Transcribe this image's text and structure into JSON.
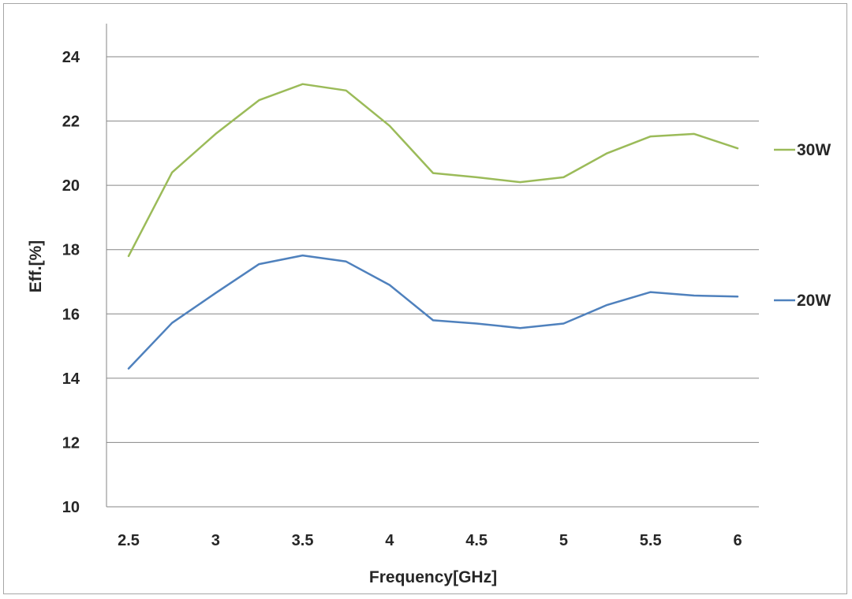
{
  "chart_data": {
    "type": "line",
    "title": "",
    "xlabel": "Frequency[GHz]",
    "ylabel": "Eff.[%]",
    "x": [
      2.5,
      2.75,
      3,
      3.25,
      3.5,
      3.75,
      4,
      4.25,
      4.5,
      4.75,
      5,
      5.25,
      5.5,
      5.75,
      6
    ],
    "x_ticks": [
      2.5,
      3,
      3.5,
      4,
      4.5,
      5,
      5.5,
      6
    ],
    "x_tick_labels": [
      "2.5",
      "3",
      "3.5",
      "4",
      "4.5",
      "5",
      "5.5",
      "6"
    ],
    "xlim": [
      2.5,
      6
    ],
    "ylim": [
      10,
      24
    ],
    "y_ticks": [
      10,
      12,
      14,
      16,
      18,
      20,
      22,
      24
    ],
    "y_tick_labels": [
      "10",
      "12",
      "14",
      "16",
      "18",
      "20",
      "22",
      "24"
    ],
    "grid": "horizontal",
    "legend_position": "right",
    "series": [
      {
        "name": "30W",
        "color": "#9bbb59",
        "values": [
          17.8,
          20.4,
          21.6,
          22.65,
          23.15,
          22.95,
          21.85,
          20.38,
          20.25,
          20.1,
          20.25,
          21.0,
          21.52,
          21.6,
          21.15
        ]
      },
      {
        "name": "20W",
        "color": "#4f81bd",
        "values": [
          14.3,
          15.72,
          16.65,
          17.55,
          17.82,
          17.63,
          16.9,
          15.8,
          15.7,
          15.56,
          15.7,
          16.28,
          16.68,
          16.57,
          16.54
        ]
      }
    ],
    "colors": {
      "grid": "#868686",
      "axis": "#868686",
      "text": "#262626"
    }
  }
}
